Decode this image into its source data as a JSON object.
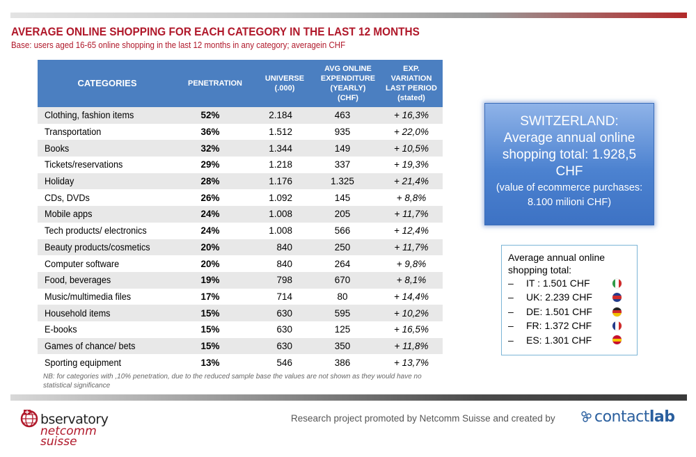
{
  "title": "AVERAGE ONLINE SHOPPING FOR EACH CATEGORY IN THE LAST 12 MONTHS",
  "subtitle": "Base: users aged 16-65 online shopping in the last 12 months in any category; averagein CHF",
  "table": {
    "headers": {
      "categories": "CATEGORIES",
      "penetration": "PENETRATION",
      "universe_1": "UNIVERSE",
      "universe_2": "(.000)",
      "avg_1": "AVG ONLINE",
      "avg_2": "EXPENDITURE",
      "avg_3": "(YEARLY)",
      "avg_4": "(CHF)",
      "var_1": "EXP.",
      "var_2": "VARIATION",
      "var_3": "LAST PERIOD",
      "var_4": "(stated)"
    },
    "rows": [
      {
        "category": "Clothing, fashion items",
        "penetration": "52%",
        "universe": "2.184",
        "avg": "463",
        "variation": "+ 16,3%"
      },
      {
        "category": "Transportation",
        "penetration": "36%",
        "universe": "1.512",
        "avg": "935",
        "variation": "+ 22,0%"
      },
      {
        "category": "Books",
        "penetration": "32%",
        "universe": "1.344",
        "avg": "149",
        "variation": "+ 10,5%"
      },
      {
        "category": "Tickets/reservations",
        "penetration": "29%",
        "universe": "1.218",
        "avg": "337",
        "variation": "+ 19,3%"
      },
      {
        "category": "Holiday",
        "penetration": "28%",
        "universe": "1.176",
        "avg": "1.325",
        "variation": "+ 21,4%"
      },
      {
        "category": "CDs, DVDs",
        "penetration": "26%",
        "universe": "1.092",
        "avg": "145",
        "variation": "+ 8,8%"
      },
      {
        "category": "Mobile apps",
        "penetration": "24%",
        "universe": "1.008",
        "avg": "205",
        "variation": "+ 11,7%"
      },
      {
        "category": "Tech products/ electronics",
        "penetration": "24%",
        "universe": "1.008",
        "avg": "566",
        "variation": "+ 12,4%"
      },
      {
        "category": "Beauty products/cosmetics",
        "penetration": "20%",
        "universe": "840",
        "avg": "250",
        "variation": "+ 11,7%"
      },
      {
        "category": "Computer software",
        "penetration": "20%",
        "universe": "840",
        "avg": "264",
        "variation": "+ 9,8%"
      },
      {
        "category": "Food, beverages",
        "penetration": "19%",
        "universe": "798",
        "avg": "670",
        "variation": "+ 8,1%"
      },
      {
        "category": "Music/multimedia files",
        "penetration": "17%",
        "universe": "714",
        "avg": "80",
        "variation": "+ 14,4%"
      },
      {
        "category": "Household items",
        "penetration": "15%",
        "universe": "630",
        "avg": "595",
        "variation": "+ 10,2%"
      },
      {
        "category": "E-books",
        "penetration": "15%",
        "universe": "630",
        "avg": "125",
        "variation": "+ 16,5%"
      },
      {
        "category": "Games of chance/ bets",
        "penetration": "15%",
        "universe": "630",
        "avg": "350",
        "variation": "+ 11,8%"
      },
      {
        "category": "Sporting equipment",
        "penetration": "13%",
        "universe": "546",
        "avg": "386",
        "variation": "+ 13,7%"
      }
    ]
  },
  "note": "NB: for categories with ,10% penetration, due to the reduced sample base the values are not shown as they would have no statistical significance",
  "switzerland_box": {
    "line1": "SWITZERLAND:",
    "line2": "Average annual online",
    "line3": "shopping total: 1.928,5",
    "line4": "CHF",
    "sub1": "(value of ecommerce purchases:",
    "sub2": "8.100 milioni CHF)"
  },
  "comparison_box": {
    "title_1": "Average annual online",
    "title_2": "shopping total:",
    "dash": "–",
    "items": [
      {
        "country": "IT : 1.501 CHF",
        "flag": "italy-flag-icon"
      },
      {
        "country": "UK: 2.239 CHF",
        "flag": "uk-flag-icon"
      },
      {
        "country": "DE: 1.501 CHF",
        "flag": "germany-flag-icon"
      },
      {
        "country": "FR: 1.372 CHF",
        "flag": "france-flag-icon"
      },
      {
        "country": "ES: 1.301 CHF",
        "flag": "spain-flag-icon"
      }
    ]
  },
  "footer": {
    "logo_line1": "bservatory",
    "logo_line2": "netcomm",
    "logo_line3": "suisse",
    "research_text": "Research project promoted by Netcomm Suisse and created by",
    "contactlab_1": "contact",
    "contactlab_2": "lab"
  },
  "colors": {
    "accent_red": "#b0182a",
    "header_blue": "#4b7fc1",
    "box_blue": "#4c82d0"
  }
}
